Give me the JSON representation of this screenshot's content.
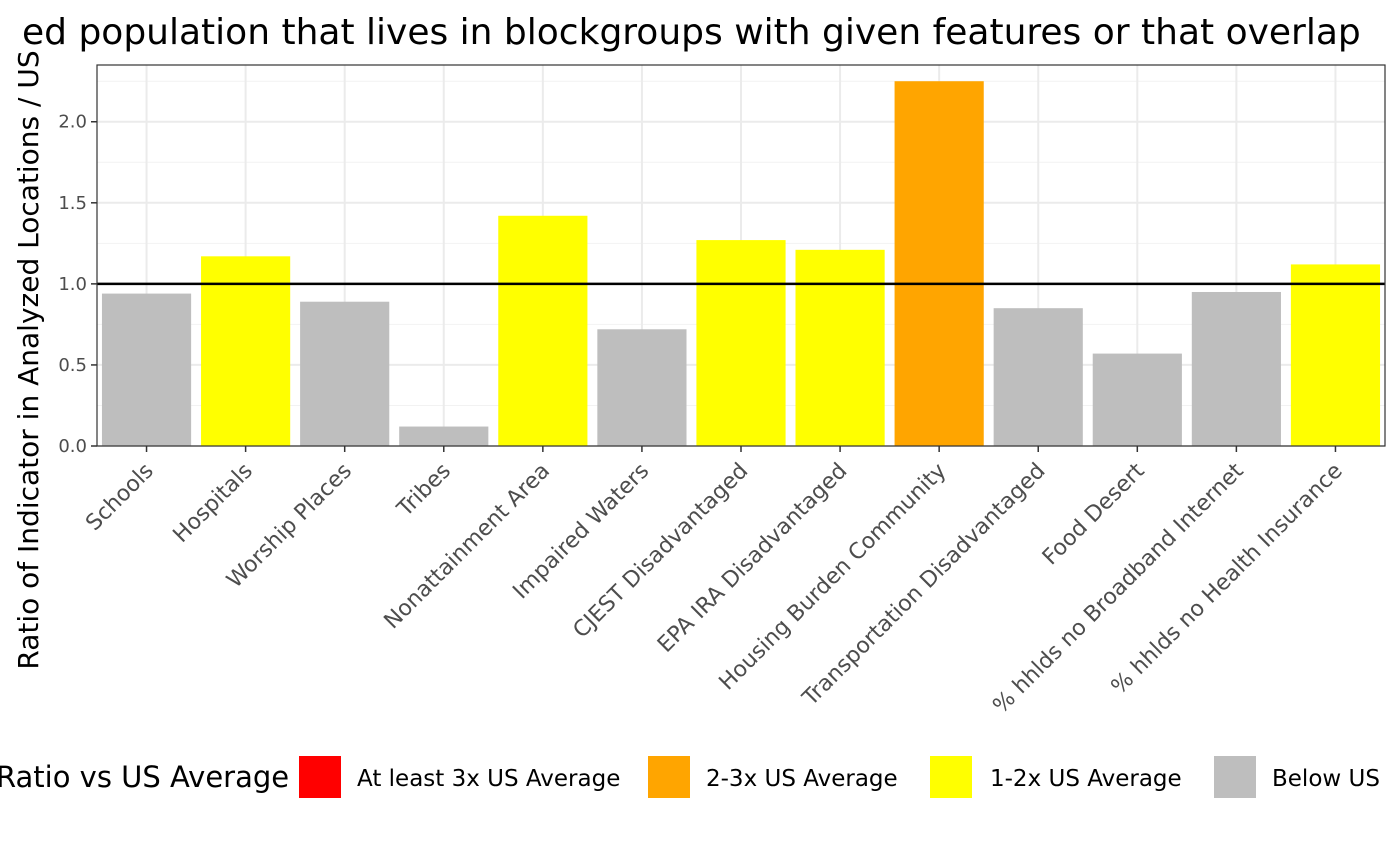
{
  "chart_data": {
    "type": "bar",
    "title": "ed population that lives in blockgroups with given features or that overlap",
    "ylabel": "Ratio of Indicator in Analyzed Locations / US",
    "xlabel": "",
    "ylim": [
      0,
      2.35
    ],
    "yticks": [
      "0.0",
      "0.5",
      "1.0",
      "1.5",
      "2.0"
    ],
    "reference_line": 1.0,
    "grid": true,
    "categories": [
      "Schools",
      "Hospitals",
      "Worship Places",
      "Tribes",
      "Nonattainment Area",
      "Impaired Waters",
      "CJEST Disadvantaged",
      "EPA IRA Disadvantaged",
      "Housing Burden Community",
      "Transportation Disadvantaged",
      "Food Desert",
      "% hhlds no Broadband Internet",
      "% hhlds no Health Insurance"
    ],
    "values": [
      0.94,
      1.17,
      0.89,
      0.12,
      1.42,
      0.72,
      1.27,
      1.21,
      2.25,
      0.85,
      0.57,
      0.95,
      1.12
    ],
    "bar_classes": [
      "below",
      "1-2x",
      "below",
      "below",
      "1-2x",
      "below",
      "1-2x",
      "1-2x",
      "2-3x",
      "below",
      "below",
      "below",
      "1-2x"
    ],
    "legend": {
      "title": "Ratio vs US Average",
      "position": "bottom",
      "items": [
        {
          "key": "3x",
          "label": "At least 3x US Average",
          "color": "#ff0000"
        },
        {
          "key": "2-3x",
          "label": "2-3x US Average",
          "color": "#ffa500"
        },
        {
          "key": "1-2x",
          "label": "1-2x US Average",
          "color": "#ffff00"
        },
        {
          "key": "below",
          "label": "Below US",
          "color": "#bebebe"
        }
      ]
    }
  }
}
